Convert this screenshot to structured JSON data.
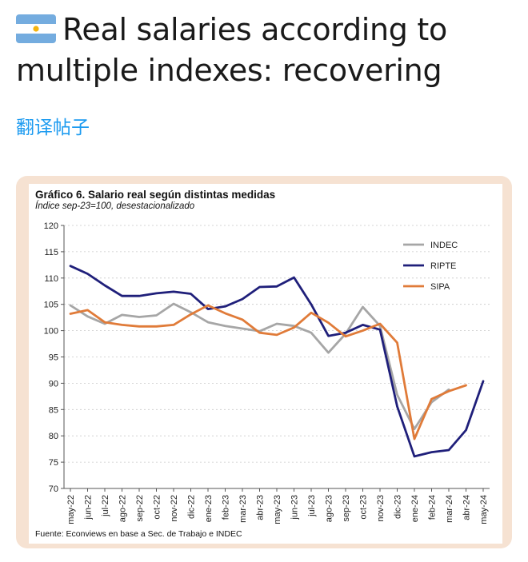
{
  "post": {
    "title_line1": "Real salaries according to",
    "title_line2": "multiple indexes: recovering",
    "flag_icon": "argentina-flag-icon",
    "translate_link": "翻译帖子"
  },
  "chart_data": {
    "type": "line",
    "title": "Gráfico  6. Salario real según distintas medidas",
    "subtitle": "Índice sep-23=100, desestacionalizado",
    "source": "Fuente: Econviews en base a Sec. de Trabajo e INDEC",
    "ylim": [
      70,
      120
    ],
    "yticks": [
      70,
      75,
      80,
      85,
      90,
      95,
      100,
      105,
      110,
      115,
      120
    ],
    "categories": [
      "may-22",
      "jun-22",
      "jul-22",
      "ago-22",
      "sep-22",
      "oct-22",
      "nov-22",
      "dic-22",
      "ene-23",
      "feb-23",
      "mar-23",
      "abr-23",
      "may-23",
      "jun-23",
      "jul-23",
      "ago-23",
      "sep-23",
      "oct-23",
      "nov-23",
      "dic-23",
      "ene-24",
      "feb-24",
      "mar-24",
      "abr-24",
      "may-24"
    ],
    "grid": true,
    "legend_position": "top-right",
    "series": [
      {
        "name": "INDEC",
        "color": "#a6a6a6",
        "values": [
          104.8,
          102.7,
          101.3,
          103.0,
          102.6,
          102.9,
          105.1,
          103.5,
          101.6,
          100.9,
          100.4,
          99.9,
          101.3,
          100.9,
          99.6,
          95.8,
          99.4,
          104.5,
          100.9,
          87.8,
          81.3,
          86.4,
          88.8,
          null,
          null
        ]
      },
      {
        "name": "RIPTE",
        "color": "#1f1f7a",
        "values": [
          112.3,
          110.8,
          108.6,
          106.6,
          106.6,
          107.1,
          107.4,
          107.0,
          104.1,
          104.6,
          106.0,
          108.3,
          108.4,
          110.1,
          105.0,
          99.0,
          99.6,
          101.1,
          100.2,
          85.6,
          76.1,
          76.9,
          77.3,
          81.1,
          90.4
        ]
      },
      {
        "name": "SIPA",
        "color": "#e07b39",
        "values": [
          103.2,
          103.9,
          101.6,
          101.1,
          100.8,
          100.8,
          101.1,
          103.1,
          104.8,
          103.3,
          102.1,
          99.6,
          99.2,
          100.6,
          103.4,
          101.5,
          98.9,
          100.0,
          101.3,
          97.7,
          79.4,
          87.0,
          88.5,
          89.6,
          null
        ]
      }
    ]
  }
}
